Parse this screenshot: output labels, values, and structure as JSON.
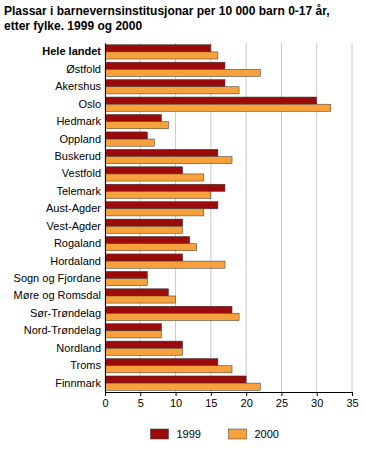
{
  "chart_data": {
    "type": "bar",
    "orientation": "horizontal",
    "title": "Plassar i barnevernsinstitusjonar per 10 000 barn 0-17 år,\netter fylke. 1999 og 2000",
    "categories": [
      "Hele landet",
      "Østfold",
      "Akershus",
      "Oslo",
      "Hedmark",
      "Oppland",
      "Buskerud",
      "Vestfold",
      "Telemark",
      "Aust-Agder",
      "Vest-Agder",
      "Rogaland",
      "Hordaland",
      "Sogn og Fjordane",
      "Møre og Romsdal",
      "Sør-Trøndelag",
      "Nord-Trøndelag",
      "Nordland",
      "Troms",
      "Finnmark"
    ],
    "series": [
      {
        "name": "1999",
        "color": "#9c0b0b",
        "values": [
          15,
          17,
          17,
          30,
          8,
          6,
          16,
          11,
          17,
          16,
          11,
          12,
          11,
          6,
          9,
          18,
          8,
          11,
          16,
          20
        ]
      },
      {
        "name": "2000",
        "color": "#f7a13c",
        "values": [
          16,
          22,
          19,
          32,
          9,
          7,
          18,
          14,
          15,
          14,
          11,
          13,
          17,
          6,
          10,
          19,
          8,
          11,
          18,
          22
        ]
      }
    ],
    "xlim": [
      0,
      35
    ],
    "xticks": [
      0,
      5,
      10,
      15,
      20,
      25,
      30,
      35
    ],
    "grid": true,
    "legend": "bottom"
  }
}
